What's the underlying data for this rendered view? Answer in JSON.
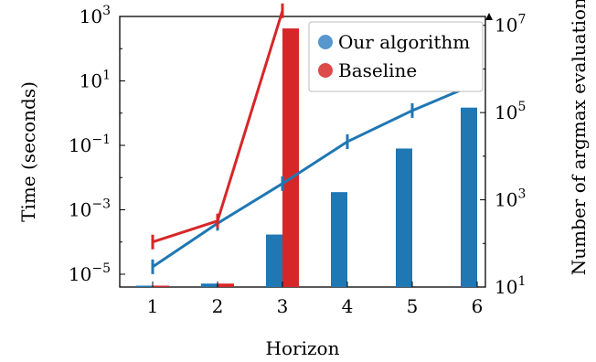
{
  "chart_data": {
    "type": "bar+line",
    "x_axis": {
      "label": "Horizon",
      "categories": [
        "1",
        "2",
        "3",
        "4",
        "5",
        "6"
      ]
    },
    "y_left": {
      "label": "Time (seconds)",
      "scale": "log",
      "range": [
        4e-06,
        1000.0
      ],
      "ticks": [
        {
          "value": 1e-05,
          "base": "10",
          "exp": "−5"
        },
        {
          "value": 0.001,
          "base": "10",
          "exp": "−3"
        },
        {
          "value": 0.1,
          "base": "10",
          "exp": "−1"
        },
        {
          "value": 10.0,
          "base": "10",
          "exp": "1"
        },
        {
          "value": 1000.0,
          "base": "10",
          "exp": "3"
        }
      ]
    },
    "y_right": {
      "label": "Number of argmax evaluations",
      "scale": "log",
      "range": [
        10,
        16000000.0
      ],
      "ticks": [
        {
          "value": 10,
          "base": "10",
          "exp": "1"
        },
        {
          "value": 1000,
          "base": "10",
          "exp": "3"
        },
        {
          "value": 100000,
          "base": "10",
          "exp": "5"
        },
        {
          "value": 10000000,
          "base": "10",
          "exp": "7"
        }
      ]
    },
    "legend": {
      "position": "top-right",
      "items": [
        {
          "label": "Our algorithm",
          "color": "#3a85c4"
        },
        {
          "label": "Baseline",
          "color": "#d62a2a"
        }
      ]
    },
    "bar_series": [
      {
        "name": "Our algorithm",
        "color": "#1f77b4",
        "axis": "right",
        "values": [
          10,
          12,
          160,
          1500,
          15000,
          130000
        ]
      },
      {
        "name": "Baseline",
        "color": "#d62728",
        "axis": "right",
        "values": [
          10,
          12,
          8500000,
          null,
          null,
          null
        ]
      }
    ],
    "line_series": [
      {
        "name": "Our algorithm",
        "color": "#1f77b4",
        "axis": "left",
        "values": [
          1.7e-05,
          0.00038,
          0.0065,
          0.13,
          1.2,
          8.5
        ]
      },
      {
        "name": "Baseline",
        "color": "#d62728",
        "axis": "left",
        "values": [
          0.0001,
          0.00045,
          1500.0,
          null,
          null,
          null
        ]
      }
    ]
  }
}
